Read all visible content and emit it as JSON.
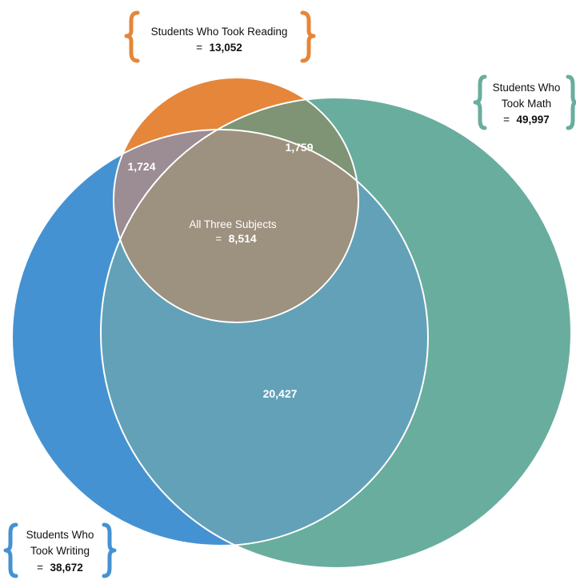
{
  "colors": {
    "reading": "#E5863A",
    "math": "#69AD9E",
    "writing": "#4592D2",
    "math_writing": "#63A1B8",
    "reading_writing": "#9C8C93",
    "reading_math": "#7E9474",
    "all_three": "#9D917F",
    "outline": "#ffffff"
  },
  "sets": {
    "reading": {
      "label": "Students Who Took Reading",
      "eq": "=",
      "count": "13,052"
    },
    "math": {
      "label_line1": "Students Who",
      "label_line2": "Took Math",
      "eq": "=",
      "count": "49,997"
    },
    "writing": {
      "label_line1": "Students Who",
      "label_line2": "Took Writing",
      "eq": "=",
      "count": "38,672"
    }
  },
  "regions": {
    "reading_math": "1,759",
    "reading_writing": "1,724",
    "all_three_label": "All Three Subjects",
    "all_three_eq": "=",
    "all_three": "8,514",
    "math_writing": "20,427"
  }
}
